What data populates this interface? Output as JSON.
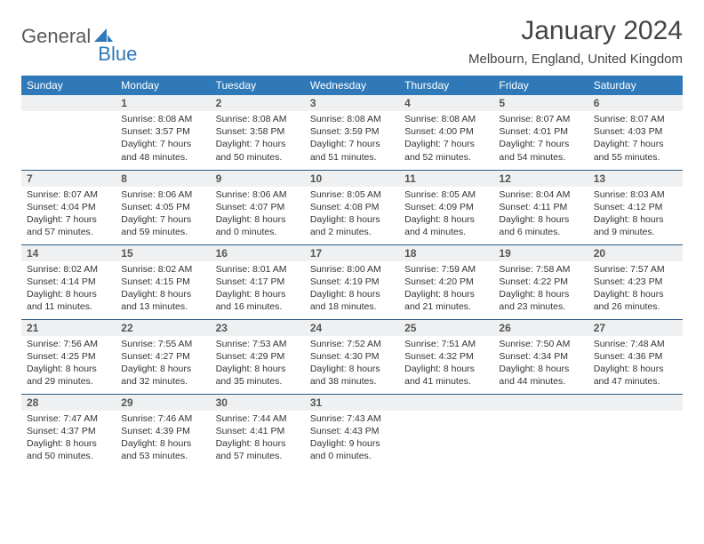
{
  "logo": {
    "text1": "General",
    "text2": "Blue"
  },
  "title": "January 2024",
  "location": "Melbourn, England, United Kingdom",
  "colors": {
    "headerBg": "#2f79b9",
    "headerText": "#ffffff",
    "dayNumBg": "#eef0f2",
    "rowBorder": "#2f5b85",
    "logoGray": "#5a5a5a",
    "logoBlue": "#2f79b9"
  },
  "dayHeaders": [
    "Sunday",
    "Monday",
    "Tuesday",
    "Wednesday",
    "Thursday",
    "Friday",
    "Saturday"
  ],
  "weeks": [
    [
      null,
      {
        "n": "1",
        "sunrise": "8:08 AM",
        "sunset": "3:57 PM",
        "day_h": "7",
        "day_m": "48"
      },
      {
        "n": "2",
        "sunrise": "8:08 AM",
        "sunset": "3:58 PM",
        "day_h": "7",
        "day_m": "50"
      },
      {
        "n": "3",
        "sunrise": "8:08 AM",
        "sunset": "3:59 PM",
        "day_h": "7",
        "day_m": "51"
      },
      {
        "n": "4",
        "sunrise": "8:08 AM",
        "sunset": "4:00 PM",
        "day_h": "7",
        "day_m": "52"
      },
      {
        "n": "5",
        "sunrise": "8:07 AM",
        "sunset": "4:01 PM",
        "day_h": "7",
        "day_m": "54"
      },
      {
        "n": "6",
        "sunrise": "8:07 AM",
        "sunset": "4:03 PM",
        "day_h": "7",
        "day_m": "55"
      }
    ],
    [
      {
        "n": "7",
        "sunrise": "8:07 AM",
        "sunset": "4:04 PM",
        "day_h": "7",
        "day_m": "57"
      },
      {
        "n": "8",
        "sunrise": "8:06 AM",
        "sunset": "4:05 PM",
        "day_h": "7",
        "day_m": "59"
      },
      {
        "n": "9",
        "sunrise": "8:06 AM",
        "sunset": "4:07 PM",
        "day_h": "8",
        "day_m": "0"
      },
      {
        "n": "10",
        "sunrise": "8:05 AM",
        "sunset": "4:08 PM",
        "day_h": "8",
        "day_m": "2"
      },
      {
        "n": "11",
        "sunrise": "8:05 AM",
        "sunset": "4:09 PM",
        "day_h": "8",
        "day_m": "4"
      },
      {
        "n": "12",
        "sunrise": "8:04 AM",
        "sunset": "4:11 PM",
        "day_h": "8",
        "day_m": "6"
      },
      {
        "n": "13",
        "sunrise": "8:03 AM",
        "sunset": "4:12 PM",
        "day_h": "8",
        "day_m": "9"
      }
    ],
    [
      {
        "n": "14",
        "sunrise": "8:02 AM",
        "sunset": "4:14 PM",
        "day_h": "8",
        "day_m": "11"
      },
      {
        "n": "15",
        "sunrise": "8:02 AM",
        "sunset": "4:15 PM",
        "day_h": "8",
        "day_m": "13"
      },
      {
        "n": "16",
        "sunrise": "8:01 AM",
        "sunset": "4:17 PM",
        "day_h": "8",
        "day_m": "16"
      },
      {
        "n": "17",
        "sunrise": "8:00 AM",
        "sunset": "4:19 PM",
        "day_h": "8",
        "day_m": "18"
      },
      {
        "n": "18",
        "sunrise": "7:59 AM",
        "sunset": "4:20 PM",
        "day_h": "8",
        "day_m": "21"
      },
      {
        "n": "19",
        "sunrise": "7:58 AM",
        "sunset": "4:22 PM",
        "day_h": "8",
        "day_m": "23"
      },
      {
        "n": "20",
        "sunrise": "7:57 AM",
        "sunset": "4:23 PM",
        "day_h": "8",
        "day_m": "26"
      }
    ],
    [
      {
        "n": "21",
        "sunrise": "7:56 AM",
        "sunset": "4:25 PM",
        "day_h": "8",
        "day_m": "29"
      },
      {
        "n": "22",
        "sunrise": "7:55 AM",
        "sunset": "4:27 PM",
        "day_h": "8",
        "day_m": "32"
      },
      {
        "n": "23",
        "sunrise": "7:53 AM",
        "sunset": "4:29 PM",
        "day_h": "8",
        "day_m": "35"
      },
      {
        "n": "24",
        "sunrise": "7:52 AM",
        "sunset": "4:30 PM",
        "day_h": "8",
        "day_m": "38"
      },
      {
        "n": "25",
        "sunrise": "7:51 AM",
        "sunset": "4:32 PM",
        "day_h": "8",
        "day_m": "41"
      },
      {
        "n": "26",
        "sunrise": "7:50 AM",
        "sunset": "4:34 PM",
        "day_h": "8",
        "day_m": "44"
      },
      {
        "n": "27",
        "sunrise": "7:48 AM",
        "sunset": "4:36 PM",
        "day_h": "8",
        "day_m": "47"
      }
    ],
    [
      {
        "n": "28",
        "sunrise": "7:47 AM",
        "sunset": "4:37 PM",
        "day_h": "8",
        "day_m": "50"
      },
      {
        "n": "29",
        "sunrise": "7:46 AM",
        "sunset": "4:39 PM",
        "day_h": "8",
        "day_m": "53"
      },
      {
        "n": "30",
        "sunrise": "7:44 AM",
        "sunset": "4:41 PM",
        "day_h": "8",
        "day_m": "57"
      },
      {
        "n": "31",
        "sunrise": "7:43 AM",
        "sunset": "4:43 PM",
        "day_h": "9",
        "day_m": "0"
      },
      null,
      null,
      null
    ]
  ]
}
